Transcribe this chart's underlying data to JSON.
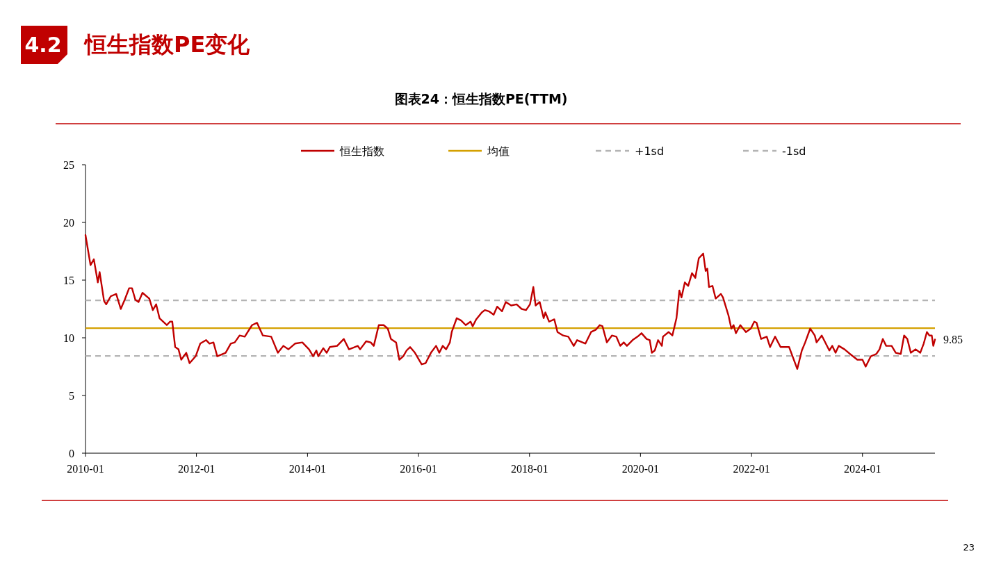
{
  "chart_data": {
    "type": "line",
    "title": "图表24：恒生指数PE(TTM)",
    "annotations": [
      "4.2",
      "恒生指数PE变化",
      "23",
      {
        "text": "9.85",
        "x": "2025-04-22",
        "y": 9.85
      }
    ],
    "x": [
      "2010-01-01",
      "2010-02-03",
      "2010-02-25",
      "2010-03-23",
      "2010-04-04",
      "2010-05-03",
      "2010-05-17",
      "2010-06-16",
      "2010-07-22",
      "2010-08-21",
      "2010-09-16",
      "2010-10-15",
      "2010-11-03",
      "2010-11-25",
      "2010-12-16",
      "2011-01-11",
      "2011-02-25",
      "2011-03-20",
      "2011-04-11",
      "2011-05-03",
      "2011-06-20",
      "2011-07-11",
      "2011-07-26",
      "2011-08-14",
      "2011-09-05",
      "2011-09-23",
      "2011-10-26",
      "2011-11-17",
      "2011-12-27",
      "2012-01-26",
      "2012-03-05",
      "2012-03-27",
      "2012-04-22",
      "2012-05-17",
      "2012-07-11",
      "2012-08-14",
      "2012-09-09",
      "2012-10-11",
      "2012-11-14",
      "2013-01-01",
      "2013-02-03",
      "2013-03-13",
      "2013-05-07",
      "2013-06-20",
      "2013-07-26",
      "2013-08-28",
      "2013-10-11",
      "2013-11-28",
      "2014-01-11",
      "2014-02-07",
      "2014-02-28",
      "2014-03-13",
      "2014-04-15",
      "2014-05-07",
      "2014-05-28",
      "2014-07-15",
      "2014-08-28",
      "2014-10-01",
      "2014-11-28",
      "2014-12-13",
      "2015-01-22",
      "2015-02-21",
      "2015-03-13",
      "2015-04-15",
      "2015-05-17",
      "2015-06-13",
      "2015-07-04",
      "2015-08-07",
      "2015-08-28",
      "2015-09-23",
      "2015-10-15",
      "2015-11-07",
      "2015-12-09",
      "2016-01-22",
      "2016-02-17",
      "2016-03-23",
      "2016-04-26",
      "2016-05-17",
      "2016-06-09",
      "2016-07-01",
      "2016-07-26",
      "2016-08-07",
      "2016-09-09",
      "2016-10-08",
      "2016-11-07",
      "2016-12-09",
      "2016-12-23",
      "2017-01-15",
      "2017-02-21",
      "2017-03-13",
      "2017-04-08",
      "2017-05-10",
      "2017-06-02",
      "2017-07-04",
      "2017-07-29",
      "2017-09-02",
      "2017-10-08",
      "2017-11-10",
      "2017-12-09",
      "2018-01-04",
      "2018-01-26",
      "2018-02-10",
      "2018-03-09",
      "2018-04-04",
      "2018-04-15",
      "2018-05-10",
      "2018-06-13",
      "2018-07-04",
      "2018-08-10",
      "2018-09-13",
      "2018-10-19",
      "2018-11-10",
      "2019-01-04",
      "2019-02-10",
      "2019-03-13",
      "2019-04-08",
      "2019-04-26",
      "2019-05-25",
      "2019-06-27",
      "2019-07-26",
      "2019-08-21",
      "2019-09-13",
      "2019-10-04",
      "2019-11-10",
      "2019-12-13",
      "2020-01-08",
      "2020-02-10",
      "2020-03-02",
      "2020-03-16",
      "2020-04-04",
      "2020-04-26",
      "2020-05-21",
      "2020-05-28",
      "2020-07-04",
      "2020-07-29",
      "2020-08-25",
      "2020-09-13",
      "2020-09-27",
      "2020-10-19",
      "2020-11-10",
      "2020-12-05",
      "2020-12-27",
      "2021-01-19",
      "2021-02-17",
      "2021-03-05",
      "2021-03-16",
      "2021-03-27",
      "2021-04-19",
      "2021-05-10",
      "2021-06-13",
      "2021-06-27",
      "2021-08-03",
      "2021-08-21",
      "2021-09-05",
      "2021-09-20",
      "2021-10-19",
      "2021-11-25",
      "2021-12-27",
      "2022-01-19",
      "2022-02-03",
      "2022-03-05",
      "2022-04-11",
      "2022-05-03",
      "2022-06-05",
      "2022-07-11",
      "2022-09-05",
      "2022-10-29",
      "2022-11-28",
      "2022-12-20",
      "2023-01-22",
      "2023-02-21",
      "2023-03-05",
      "2023-04-08",
      "2023-05-28",
      "2023-06-16",
      "2023-07-08",
      "2023-07-29",
      "2023-09-05",
      "2023-10-11",
      "2023-11-28",
      "2024-01-01",
      "2024-01-22",
      "2024-02-25",
      "2024-04-01",
      "2024-04-22",
      "2024-05-14",
      "2024-06-05",
      "2024-07-11",
      "2024-08-07",
      "2024-09-09",
      "2024-10-01",
      "2024-10-22",
      "2024-11-14",
      "2024-12-16",
      "2025-01-15",
      "2025-02-07",
      "2025-02-28",
      "2025-03-16",
      "2025-04-01",
      "2025-04-11",
      "2025-04-22"
    ],
    "series": [
      {
        "name": "恒生指数",
        "color": "#c00000",
        "values": [
          18.9,
          16.3,
          16.8,
          14.8,
          15.7,
          13.2,
          12.9,
          13.6,
          13.8,
          12.5,
          13.3,
          14.3,
          14.3,
          13.3,
          13.1,
          13.9,
          13.4,
          12.4,
          12.9,
          11.7,
          11.1,
          11.4,
          11.4,
          9.2,
          9.0,
          8.1,
          8.7,
          7.8,
          8.4,
          9.5,
          9.8,
          9.5,
          9.6,
          8.4,
          8.7,
          9.5,
          9.6,
          10.2,
          10.1,
          11.1,
          11.3,
          10.2,
          10.1,
          8.7,
          9.3,
          9.0,
          9.5,
          9.6,
          9.0,
          8.4,
          8.9,
          8.4,
          9.1,
          8.7,
          9.2,
          9.3,
          9.9,
          9.0,
          9.3,
          9.0,
          9.7,
          9.6,
          9.3,
          11.1,
          11.1,
          10.8,
          9.9,
          9.6,
          8.1,
          8.4,
          8.9,
          9.2,
          8.7,
          7.7,
          7.8,
          8.7,
          9.3,
          8.7,
          9.3,
          9.0,
          9.6,
          10.5,
          11.7,
          11.5,
          11.1,
          11.4,
          11.0,
          11.6,
          12.2,
          12.4,
          12.3,
          12.0,
          12.7,
          12.3,
          13.1,
          12.8,
          12.9,
          12.5,
          12.4,
          12.9,
          14.4,
          12.8,
          13.1,
          11.7,
          12.2,
          11.4,
          11.6,
          10.5,
          10.2,
          10.1,
          9.3,
          9.8,
          9.5,
          10.5,
          10.7,
          11.1,
          11.0,
          9.6,
          10.2,
          10.1,
          9.3,
          9.6,
          9.3,
          9.8,
          10.1,
          10.4,
          9.9,
          9.8,
          8.7,
          8.9,
          9.8,
          9.3,
          10.1,
          10.5,
          10.2,
          11.7,
          14.1,
          13.5,
          14.8,
          14.5,
          15.6,
          15.2,
          16.9,
          17.3,
          15.8,
          16.0,
          14.4,
          14.5,
          13.4,
          13.8,
          13.5,
          11.9,
          10.8,
          11.1,
          10.4,
          11.1,
          10.5,
          10.8,
          11.4,
          11.3,
          9.9,
          10.1,
          9.2,
          10.1,
          9.2,
          9.2,
          7.3,
          8.9,
          9.6,
          10.8,
          10.2,
          9.6,
          10.2,
          8.9,
          9.3,
          8.7,
          9.3,
          9.0,
          8.6,
          8.1,
          8.1,
          7.5,
          8.4,
          8.6,
          9.0,
          9.9,
          9.3,
          9.3,
          8.7,
          8.6,
          10.2,
          9.9,
          8.7,
          9.0,
          8.7,
          9.5,
          10.5,
          10.2,
          10.2,
          9.3,
          9.85
        ]
      }
    ],
    "ref_lines": [
      {
        "axis": "y",
        "value": 10.84,
        "label": "均值",
        "color": "#d4a000",
        "line_style": "solid"
      },
      {
        "axis": "y",
        "value": 13.25,
        "label": "+1sd",
        "color": "#b4b4b4",
        "line_style": "dashed"
      },
      {
        "axis": "y",
        "value": 8.43,
        "label": "-1sd",
        "color": "#b4b4b4",
        "line_style": "dashed"
      }
    ],
    "xlim": [
      "2010-01-01",
      "2025-04-22"
    ],
    "xticks": [
      "2010-01",
      "2012-01",
      "2014-01",
      "2016-01",
      "2018-01",
      "2020-01",
      "2022-01",
      "2024-01"
    ],
    "ylim": [
      0,
      25
    ],
    "yticks": [
      0,
      5,
      10,
      15,
      20,
      25
    ],
    "legend": "top",
    "grid": false,
    "line_style": "solid",
    "marker": "none"
  }
}
